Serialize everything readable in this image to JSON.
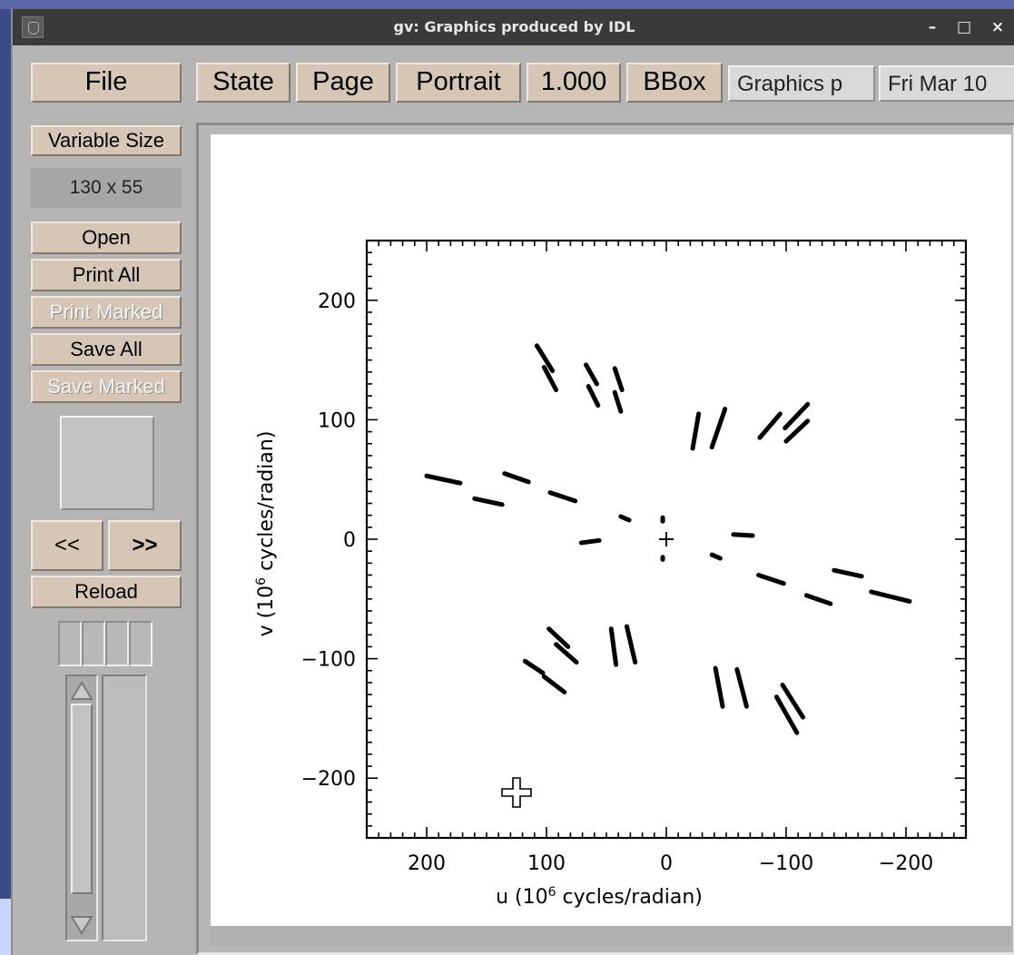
{
  "window": {
    "title": "gv: Graphics produced by IDL",
    "buttons": {
      "minimize": "–",
      "maximize": "□",
      "close": "×"
    }
  },
  "toolbar": {
    "file": "File",
    "state": "State",
    "page": "Page",
    "orientation": "Portrait",
    "scale": "1.000",
    "bbox": "BBox",
    "doc_title": "Graphics p",
    "date": "Fri Mar 10"
  },
  "sidebar": {
    "size_mode": "Variable Size",
    "size_value": "130 x 55",
    "open": "Open",
    "print_all": "Print All",
    "print_marked": "Print Marked",
    "save_all": "Save All",
    "save_marked": "Save Marked",
    "prev": "<<",
    "next": ">>",
    "reload": "Reload"
  },
  "plot": {
    "xlabel_main": "u (10",
    "xlabel_exp": "6",
    "xlabel_tail": " cycles/radian)",
    "ylabel_main": "v (10",
    "ylabel_exp": "6",
    "ylabel_tail": " cycles/radian)",
    "xticks": [
      "200",
      "100",
      "0",
      "−100",
      "−200"
    ],
    "yticks": [
      "200",
      "100",
      "0",
      "−100",
      "−200"
    ]
  },
  "chart_data": {
    "type": "scatter",
    "title": "",
    "xlabel": "u (10^6 cycles/radian)",
    "ylabel": "v (10^6 cycles/radian)",
    "xlim": [
      250,
      -250
    ],
    "ylim": [
      -250,
      250
    ],
    "x_reversed": true,
    "grid": false,
    "tracks": [
      {
        "u0": 200,
        "v0": 53,
        "u1": 172,
        "v1": 47
      },
      {
        "u0": 160,
        "v0": 34,
        "u1": 137,
        "v1": 29
      },
      {
        "u0": 135,
        "v0": 55,
        "u1": 115,
        "v1": 48
      },
      {
        "u0": 97,
        "v0": 39,
        "u1": 76,
        "v1": 32
      },
      {
        "u0": 71,
        "v0": -3,
        "u1": 56,
        "v1": -1
      },
      {
        "u0": 38,
        "v0": 19,
        "u1": 31,
        "v1": 16
      },
      {
        "u0": 3,
        "v0": 18,
        "u1": 3,
        "v1": 15
      },
      {
        "u0": 3,
        "v0": -15,
        "u1": 3,
        "v1": -17
      },
      {
        "u0": -38,
        "v0": -13,
        "u1": -45,
        "v1": -16
      },
      {
        "u0": -56,
        "v0": 4,
        "u1": -72,
        "v1": 3
      },
      {
        "u0": -77,
        "v0": -30,
        "u1": -98,
        "v1": -37
      },
      {
        "u0": -117,
        "v0": -47,
        "u1": -137,
        "v1": -54
      },
      {
        "u0": -140,
        "v0": -26,
        "u1": -163,
        "v1": -31
      },
      {
        "u0": -171,
        "v0": -44,
        "u1": -203,
        "v1": -52
      },
      {
        "u0": 108,
        "v0": 162,
        "u1": 95,
        "v1": 141
      },
      {
        "u0": 102,
        "v0": 144,
        "u1": 92,
        "v1": 125
      },
      {
        "u0": 67,
        "v0": 146,
        "u1": 58,
        "v1": 130
      },
      {
        "u0": 65,
        "v0": 128,
        "u1": 57,
        "v1": 112
      },
      {
        "u0": 43,
        "v0": 143,
        "u1": 37,
        "v1": 125
      },
      {
        "u0": 43,
        "v0": 123,
        "u1": 38,
        "v1": 107
      },
      {
        "u0": -27,
        "v0": 105,
        "u1": -22,
        "v1": 76
      },
      {
        "u0": -49,
        "v0": 109,
        "u1": -38,
        "v1": 77
      },
      {
        "u0": -95,
        "v0": 105,
        "u1": -78,
        "v1": 85
      },
      {
        "u0": -118,
        "v0": 113,
        "u1": -99,
        "v1": 93
      },
      {
        "u0": -118,
        "v0": 99,
        "u1": -100,
        "v1": 82
      },
      {
        "u0": 98,
        "v0": -75,
        "u1": 82,
        "v1": -90
      },
      {
        "u0": 92,
        "v0": -88,
        "u1": 75,
        "v1": -103
      },
      {
        "u0": 118,
        "v0": -102,
        "u1": 103,
        "v1": -112
      },
      {
        "u0": 102,
        "v0": -115,
        "u1": 85,
        "v1": -128
      },
      {
        "u0": 46,
        "v0": -75,
        "u1": 42,
        "v1": -105
      },
      {
        "u0": 33,
        "v0": -73,
        "u1": 26,
        "v1": -103
      },
      {
        "u0": -41,
        "v0": -108,
        "u1": -47,
        "v1": -140
      },
      {
        "u0": -59,
        "v0": -109,
        "u1": -67,
        "v1": -140
      },
      {
        "u0": -97,
        "v0": -122,
        "u1": -114,
        "v1": -149
      },
      {
        "u0": -92,
        "v0": -132,
        "u1": -109,
        "v1": -162
      }
    ],
    "center_marker": {
      "u": 0,
      "v": 0
    }
  }
}
